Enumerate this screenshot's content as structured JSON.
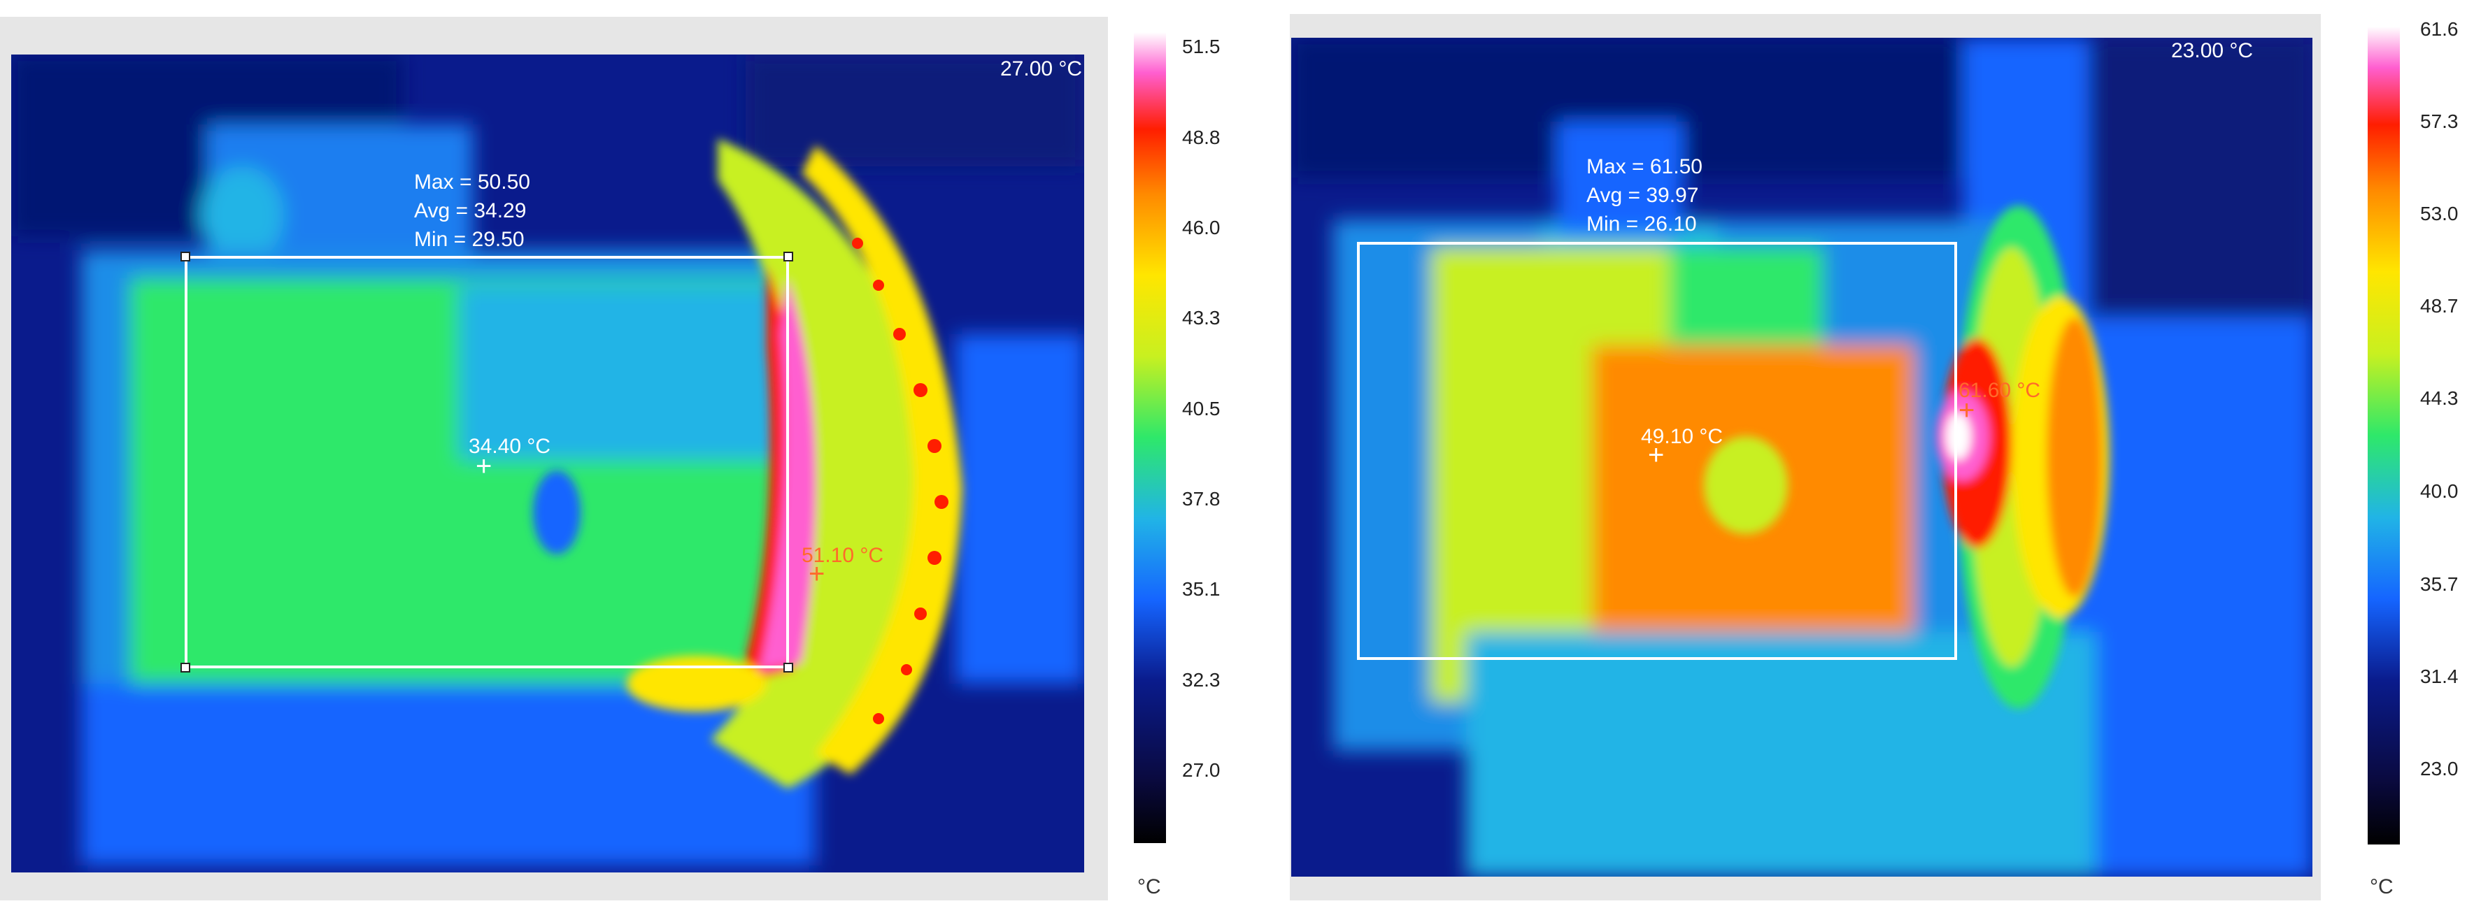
{
  "left": {
    "corner_reading": "27.00 °C",
    "stats": {
      "max": "Max = 50.50",
      "avg": "Avg = 34.29",
      "min": "Min = 29.50"
    },
    "spot_center": "34.40 °C",
    "spot_hot": "51.10 °C",
    "scale": [
      "51.5",
      "48.8",
      "46.0",
      "43.3",
      "40.5",
      "37.8",
      "35.1",
      "32.3",
      "27.0"
    ],
    "unit": "°C"
  },
  "right": {
    "corner_reading": "23.00 °C",
    "stats": {
      "max": "Max = 61.50",
      "avg": "Avg = 39.97",
      "min": "Min = 26.10"
    },
    "spot_center": "49.10 °C",
    "spot_hot": "61.60 °C",
    "scale": [
      "61.6",
      "57.3",
      "53.0",
      "48.7",
      "44.3",
      "40.0",
      "35.7",
      "31.4",
      "23.0"
    ],
    "unit": "°C"
  },
  "colors": {
    "palette": [
      "#000000",
      "#0a1b8c",
      "#1565ff",
      "#21b4e6",
      "#2ee86a",
      "#c8f020",
      "#ffe600",
      "#ff8a00",
      "#ff1e00",
      "#ff5fd0",
      "#ffffff"
    ]
  }
}
